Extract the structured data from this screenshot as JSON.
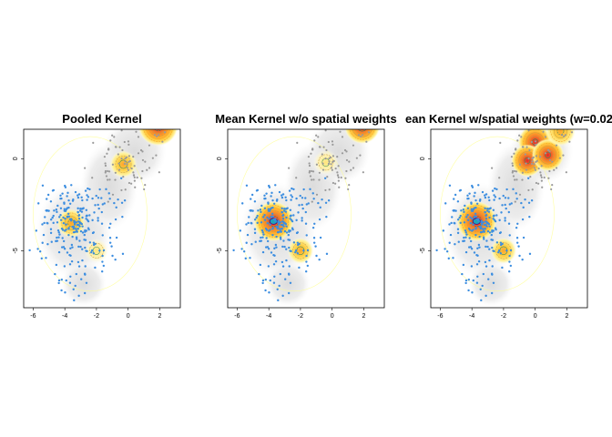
{
  "colors": {
    "background": "#ffffff",
    "low_density": "#e6e6e6",
    "density_ramp": [
      "#fffde0",
      "#fff3a0",
      "#ffd24a",
      "#ffa52a",
      "#f46d2a",
      "#e0282a"
    ],
    "contour_outer": "#ffff88",
    "contour_mid": "#f5a623",
    "contour_inner": "#2e8b57",
    "contour_core": "#4b0082",
    "group1_points": "#3b8de0",
    "group2_points": "#9a9a9a"
  },
  "chart_data": [
    {
      "type": "heatmap",
      "title": "Pooled Kernel",
      "xlabel": "",
      "ylabel": "",
      "xlim": [
        -6.6,
        3.3
      ],
      "ylim": [
        -8.1,
        1.6
      ],
      "xticks": [
        "-6",
        "-4",
        "-2",
        "0",
        "2"
      ],
      "yticks": [
        "0",
        "-5"
      ],
      "grid": false,
      "legend": "none",
      "density_peaks": [
        {
          "x": -3.6,
          "y": -3.5,
          "height": 0.45
        },
        {
          "x": -2.0,
          "y": -5.0,
          "height": 0.2
        },
        {
          "x": -0.3,
          "y": -0.3,
          "height": 0.35
        },
        {
          "x": 1.9,
          "y": 1.8,
          "height": 1.0
        }
      ]
    },
    {
      "type": "heatmap",
      "title": "Mean Kernel w/o spatial weights",
      "xlabel": "",
      "ylabel": "",
      "xlim": [
        -6.6,
        3.3
      ],
      "ylim": [
        -8.1,
        1.6
      ],
      "xticks": [
        "-6",
        "-4",
        "-2",
        "0",
        "2"
      ],
      "yticks": [
        "0",
        "-5"
      ],
      "grid": false,
      "legend": "none",
      "density_peaks": [
        {
          "x": -3.7,
          "y": -3.4,
          "height": 1.0
        },
        {
          "x": -2.0,
          "y": -5.0,
          "height": 0.3
        },
        {
          "x": -0.4,
          "y": -0.2,
          "height": 0.25
        },
        {
          "x": 1.9,
          "y": 1.8,
          "height": 0.8
        }
      ]
    },
    {
      "type": "heatmap",
      "title": "ean Kernel w/spatial weights (w=0.02",
      "xlabel": "",
      "ylabel": "",
      "xlim": [
        -6.6,
        3.3
      ],
      "ylim": [
        -8.1,
        1.6
      ],
      "xticks": [
        "-6",
        "-4",
        "-2",
        "0",
        "2"
      ],
      "yticks": [
        "0",
        "-5"
      ],
      "grid": false,
      "legend": "none",
      "density_peaks": [
        {
          "x": -3.7,
          "y": -3.4,
          "height": 1.0
        },
        {
          "x": -2.0,
          "y": -5.0,
          "height": 0.3
        },
        {
          "x": 0.0,
          "y": 0.9,
          "height": 0.7
        },
        {
          "x": -0.5,
          "y": -0.1,
          "height": 0.6
        },
        {
          "x": 0.8,
          "y": 0.2,
          "height": 0.6
        },
        {
          "x": 1.6,
          "y": 1.5,
          "height": 0.5
        }
      ]
    }
  ]
}
